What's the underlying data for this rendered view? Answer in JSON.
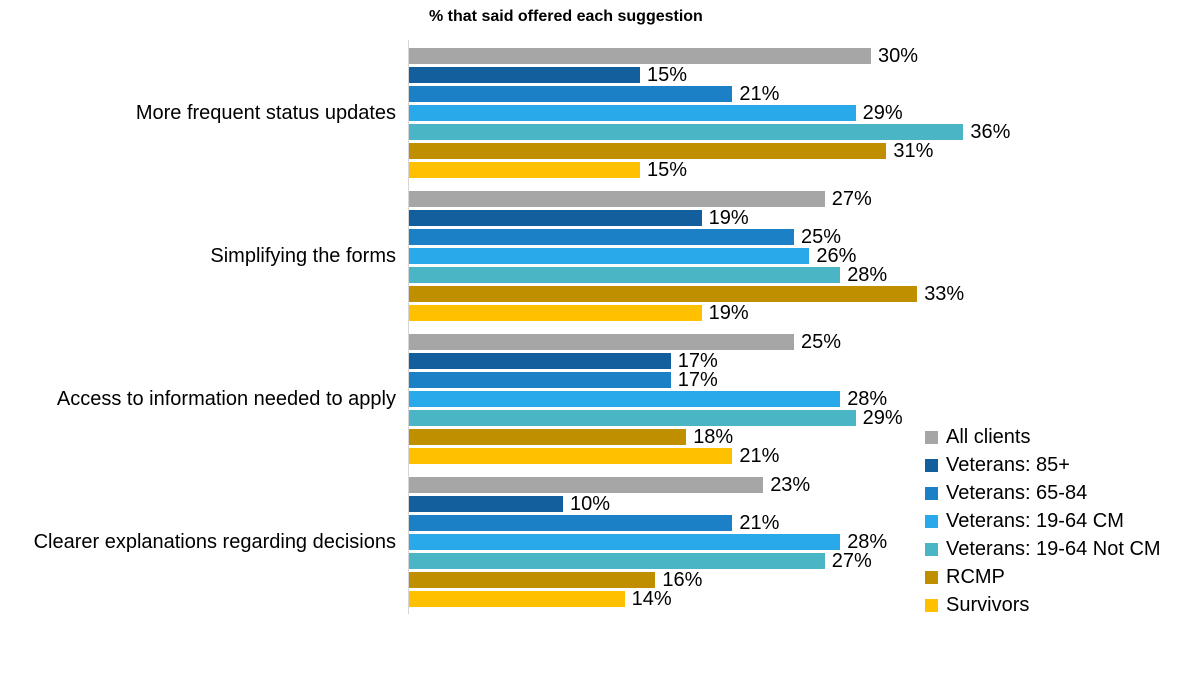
{
  "title": "% that said offered each suggestion",
  "chart_data": {
    "type": "bar",
    "orientation": "horizontal",
    "title": "% that said offered each suggestion",
    "xlabel": "",
    "ylabel": "",
    "value_suffix": "%",
    "xlim": [
      0,
      51
    ],
    "grid": false,
    "legend_position": "right-middle",
    "categories": [
      "More frequent status updates",
      "Simplifying the forms",
      "Access to information needed to apply",
      "Clearer explanations regarding decisions"
    ],
    "series": [
      {
        "name": "All clients",
        "color": "#A6A6A6",
        "values": [
          30,
          27,
          25,
          23
        ]
      },
      {
        "name": "Veterans: 85+",
        "color": "#135E9C",
        "values": [
          15,
          19,
          17,
          10
        ]
      },
      {
        "name": "Veterans: 65-84",
        "color": "#1C80C6",
        "values": [
          21,
          25,
          17,
          21
        ]
      },
      {
        "name": "Veterans: 19-64 CM",
        "color": "#29A9EA",
        "values": [
          29,
          26,
          28,
          28
        ]
      },
      {
        "name": "Veterans: 19-64 Not CM",
        "color": "#4AB5C4",
        "values": [
          36,
          28,
          29,
          27
        ]
      },
      {
        "name": "RCMP",
        "color": "#BF8F00",
        "values": [
          31,
          33,
          18,
          16
        ]
      },
      {
        "name": "Survivors",
        "color": "#FFC000",
        "values": [
          15,
          19,
          21,
          14
        ]
      }
    ]
  }
}
